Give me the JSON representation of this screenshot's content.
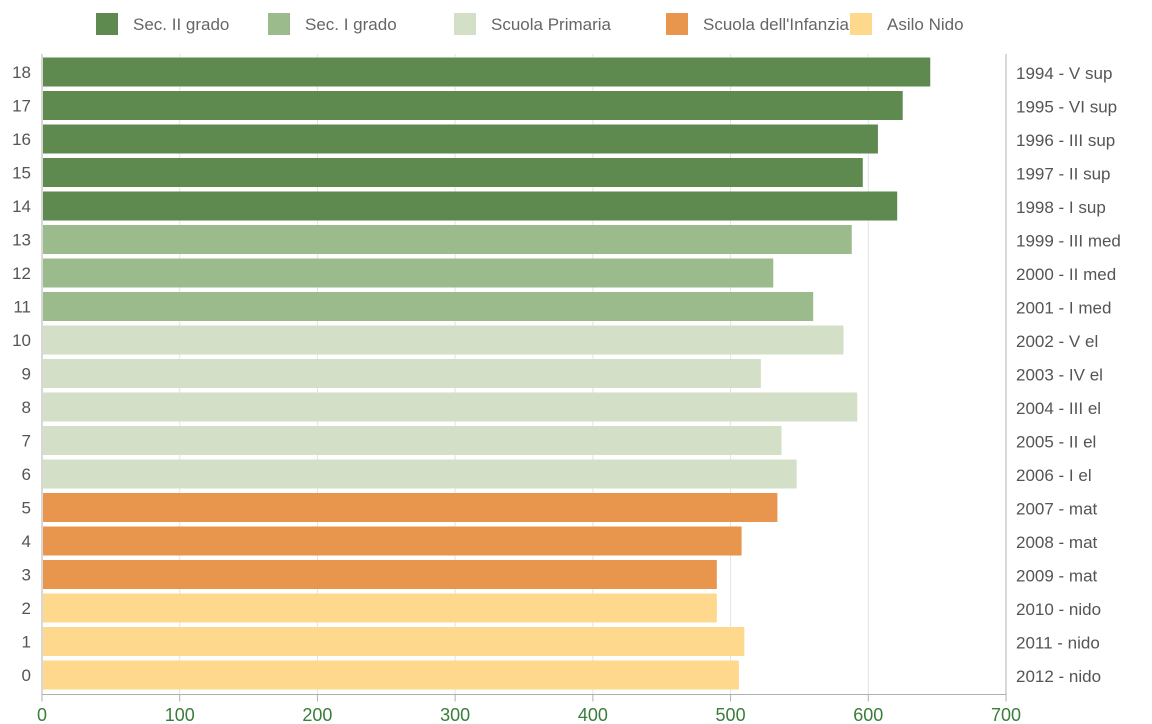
{
  "chart_data": {
    "type": "bar",
    "orientation": "horizontal",
    "title": "",
    "xlabel": "",
    "ylabel": "",
    "xlim": [
      0,
      700
    ],
    "x_ticks": [
      0,
      100,
      200,
      300,
      400,
      500,
      600,
      700
    ],
    "grid": "vertical",
    "legend_position": "top",
    "legend": [
      {
        "label": "Sec. II grado",
        "color": "#5e8a50"
      },
      {
        "label": "Sec. I grado",
        "color": "#9bbb8c"
      },
      {
        "label": "Scuola Primaria",
        "color": "#d3e0c7"
      },
      {
        "label": "Scuola dell'Infanzia",
        "color": "#e8964e"
      },
      {
        "label": "Asilo Nido",
        "color": "#fdd88d"
      }
    ],
    "bars": [
      {
        "index": "18",
        "label": "1994 - V sup",
        "value": 645,
        "group": 0
      },
      {
        "index": "17",
        "label": "1995 - VI sup",
        "value": 625,
        "group": 0
      },
      {
        "index": "16",
        "label": "1996 - III sup",
        "value": 607,
        "group": 0
      },
      {
        "index": "15",
        "label": "1997 - II sup",
        "value": 596,
        "group": 0
      },
      {
        "index": "14",
        "label": "1998 - I sup",
        "value": 621,
        "group": 0
      },
      {
        "index": "13",
        "label": "1999 - III med",
        "value": 588,
        "group": 1
      },
      {
        "index": "12",
        "label": "2000 - II med",
        "value": 531,
        "group": 1
      },
      {
        "index": "11",
        "label": "2001 - I med",
        "value": 560,
        "group": 1
      },
      {
        "index": "10",
        "label": "2002 - V el",
        "value": 582,
        "group": 2
      },
      {
        "index": "9",
        "label": "2003 - IV el",
        "value": 522,
        "group": 2
      },
      {
        "index": "8",
        "label": "2004 - III el",
        "value": 592,
        "group": 2
      },
      {
        "index": "7",
        "label": "2005 - II el",
        "value": 537,
        "group": 2
      },
      {
        "index": "6",
        "label": "2006 - I el",
        "value": 548,
        "group": 2
      },
      {
        "index": "5",
        "label": "2007 - mat",
        "value": 534,
        "group": 3
      },
      {
        "index": "4",
        "label": "2008 - mat",
        "value": 508,
        "group": 3
      },
      {
        "index": "3",
        "label": "2009 - mat",
        "value": 490,
        "group": 3
      },
      {
        "index": "2",
        "label": "2010 - nido",
        "value": 490,
        "group": 4
      },
      {
        "index": "1",
        "label": "2011 - nido",
        "value": 510,
        "group": 4
      },
      {
        "index": "0",
        "label": "2012 - nido",
        "value": 506,
        "group": 4
      }
    ]
  }
}
